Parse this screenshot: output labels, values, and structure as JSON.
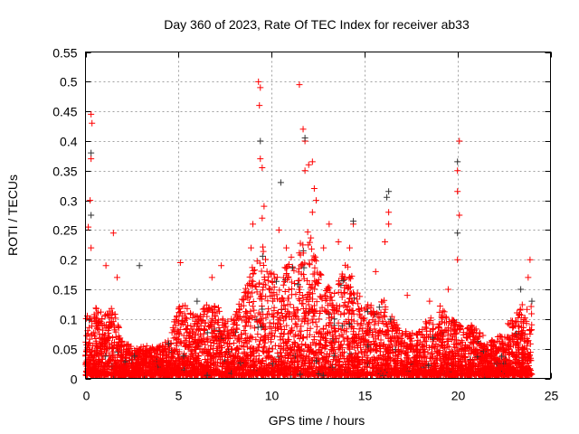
{
  "chart_data": {
    "type": "scatter",
    "title": "Day 360 of 2023, Rate Of TEC Index for receiver ab33",
    "xlabel": "GPS time / hours",
    "ylabel": "ROTI / TECUs",
    "xlim": [
      0,
      25
    ],
    "ylim": [
      0,
      0.55
    ],
    "grid": true,
    "marker": "plus",
    "x_ticks": [
      "0",
      "5",
      "10",
      "15",
      "20",
      "25"
    ],
    "x_tick_values": [
      0,
      5,
      10,
      15,
      20,
      25
    ],
    "y_ticks": [
      "0",
      "0.05",
      "0.1",
      "0.15",
      "0.2",
      "0.25",
      "0.3",
      "0.35",
      "0.4",
      "0.45",
      "0.5",
      "0.55"
    ],
    "y_tick_values": [
      0,
      0.05,
      0.1,
      0.15,
      0.2,
      0.25,
      0.3,
      0.35,
      0.4,
      0.45,
      0.5,
      0.55
    ],
    "dense_band": {
      "description_hours": [
        0,
        0.5,
        1,
        1.5,
        2,
        2.5,
        3,
        3.5,
        4,
        4.5,
        5,
        5.5,
        6,
        6.5,
        7,
        7.5,
        8,
        8.5,
        9,
        9.5,
        10,
        10.5,
        11,
        11.5,
        12,
        12.5,
        13,
        13.5,
        14,
        14.5,
        15,
        15.5,
        16,
        16.5,
        17,
        17.5,
        18,
        18.5,
        19,
        19.5,
        20,
        20.5,
        21,
        21.5,
        22,
        22.5,
        23,
        23.5,
        24
      ],
      "upper_roti": [
        0.1,
        0.12,
        0.1,
        0.12,
        0.06,
        0.05,
        0.05,
        0.05,
        0.05,
        0.06,
        0.12,
        0.12,
        0.1,
        0.12,
        0.12,
        0.1,
        0.1,
        0.14,
        0.2,
        0.22,
        0.18,
        0.17,
        0.2,
        0.22,
        0.25,
        0.18,
        0.15,
        0.15,
        0.2,
        0.15,
        0.12,
        0.12,
        0.13,
        0.1,
        0.08,
        0.07,
        0.08,
        0.1,
        0.12,
        0.1,
        0.09,
        0.08,
        0.09,
        0.06,
        0.06,
        0.08,
        0.1,
        0.12,
        0.12
      ]
    },
    "series": [
      {
        "name": "red",
        "color": "#ff0000",
        "points": [
          [
            0.3,
            0.445
          ],
          [
            0.35,
            0.43
          ],
          [
            0.3,
            0.37
          ],
          [
            0.25,
            0.3
          ],
          [
            0.15,
            0.255
          ],
          [
            0.3,
            0.22
          ],
          [
            1.5,
            0.245
          ],
          [
            1.1,
            0.19
          ],
          [
            1.7,
            0.17
          ],
          [
            9.3,
            0.5
          ],
          [
            9.4,
            0.49
          ],
          [
            9.35,
            0.46
          ],
          [
            9.4,
            0.37
          ],
          [
            9.5,
            0.355
          ],
          [
            9.6,
            0.29
          ],
          [
            9.5,
            0.27
          ],
          [
            11.5,
            0.495
          ],
          [
            11.7,
            0.42
          ],
          [
            11.8,
            0.4
          ],
          [
            11.8,
            0.35
          ],
          [
            12.0,
            0.36
          ],
          [
            12.2,
            0.365
          ],
          [
            12.3,
            0.32
          ],
          [
            12.4,
            0.3
          ],
          [
            12.2,
            0.28
          ],
          [
            14.4,
            0.26
          ],
          [
            16.3,
            0.28
          ],
          [
            16.3,
            0.26
          ],
          [
            16.1,
            0.23
          ],
          [
            20.1,
            0.4
          ],
          [
            20.0,
            0.35
          ],
          [
            20.0,
            0.315
          ],
          [
            20.1,
            0.275
          ],
          [
            20.0,
            0.2
          ],
          [
            5.1,
            0.195
          ],
          [
            9.0,
            0.26
          ],
          [
            10.4,
            0.25
          ],
          [
            13.1,
            0.26
          ],
          [
            13.6,
            0.23
          ],
          [
            14.2,
            0.22
          ],
          [
            23.9,
            0.2
          ],
          [
            23.8,
            0.17
          ],
          [
            19.5,
            0.15
          ],
          [
            17.3,
            0.14
          ],
          [
            18.5,
            0.13
          ],
          [
            15.6,
            0.18
          ],
          [
            6.8,
            0.17
          ],
          [
            7.3,
            0.19
          ],
          [
            8.9,
            0.22
          ],
          [
            10.8,
            0.22
          ],
          [
            12.8,
            0.22
          ]
        ]
      },
      {
        "name": "black",
        "color": "#333333",
        "points": [
          [
            0.3,
            0.38
          ],
          [
            0.3,
            0.275
          ],
          [
            2.9,
            0.19
          ],
          [
            9.4,
            0.4
          ],
          [
            10.5,
            0.33
          ],
          [
            11.8,
            0.405
          ],
          [
            14.4,
            0.265
          ],
          [
            16.3,
            0.315
          ],
          [
            16.2,
            0.305
          ],
          [
            20.0,
            0.365
          ],
          [
            20.0,
            0.245
          ],
          [
            23.4,
            0.15
          ],
          [
            24,
            0.13
          ],
          [
            15.8,
            0.12
          ],
          [
            6,
            0.13
          ]
        ]
      }
    ]
  }
}
